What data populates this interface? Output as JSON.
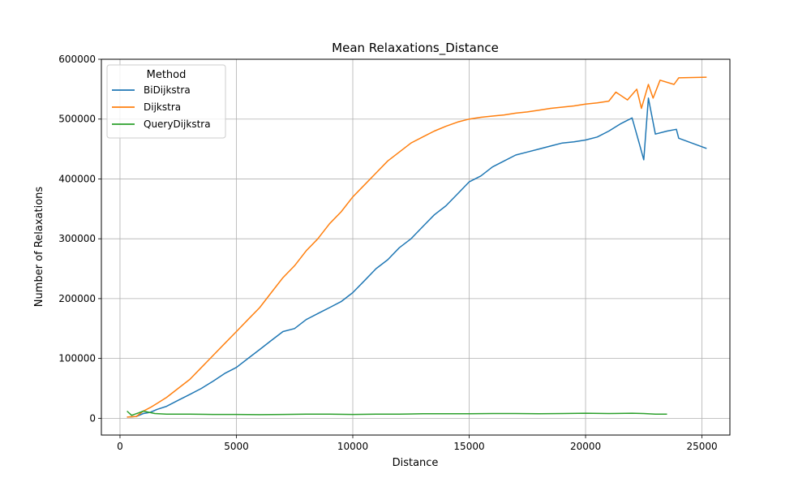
{
  "chart_data": {
    "type": "line",
    "title": "Mean Relaxations_Distance",
    "xlabel": "Distance",
    "ylabel": "Number of Relaxations",
    "xlim": [
      -800,
      26200
    ],
    "ylim": [
      -28000,
      600000
    ],
    "xticks": [
      0,
      5000,
      10000,
      15000,
      20000,
      25000
    ],
    "xtick_labels": [
      "0",
      "5000",
      "10000",
      "15000",
      "20000",
      "25000"
    ],
    "yticks": [
      0,
      100000,
      200000,
      300000,
      400000,
      500000,
      600000
    ],
    "ytick_labels": [
      "0",
      "100000",
      "200000",
      "300000",
      "400000",
      "500000",
      "600000"
    ],
    "grid": true,
    "legend": {
      "title": "Method",
      "position": "top-left"
    },
    "series": [
      {
        "name": "BiDijkstra",
        "color": "#1f77b4",
        "points": [
          [
            300,
            2000
          ],
          [
            700,
            3000
          ],
          [
            1000,
            8000
          ],
          [
            1300,
            10000
          ],
          [
            1600,
            15000
          ],
          [
            2000,
            20000
          ],
          [
            2500,
            30000
          ],
          [
            3000,
            40000
          ],
          [
            3500,
            50000
          ],
          [
            4000,
            62000
          ],
          [
            4500,
            75000
          ],
          [
            5000,
            85000
          ],
          [
            5500,
            100000
          ],
          [
            6000,
            115000
          ],
          [
            6500,
            130000
          ],
          [
            7000,
            145000
          ],
          [
            7500,
            150000
          ],
          [
            8000,
            165000
          ],
          [
            8500,
            175000
          ],
          [
            9000,
            185000
          ],
          [
            9500,
            195000
          ],
          [
            10000,
            210000
          ],
          [
            10500,
            230000
          ],
          [
            11000,
            250000
          ],
          [
            11500,
            265000
          ],
          [
            12000,
            285000
          ],
          [
            12500,
            300000
          ],
          [
            13000,
            320000
          ],
          [
            13500,
            340000
          ],
          [
            14000,
            355000
          ],
          [
            14500,
            375000
          ],
          [
            15000,
            395000
          ],
          [
            15500,
            405000
          ],
          [
            16000,
            420000
          ],
          [
            16500,
            430000
          ],
          [
            17000,
            440000
          ],
          [
            17500,
            445000
          ],
          [
            18000,
            450000
          ],
          [
            18500,
            455000
          ],
          [
            19000,
            460000
          ],
          [
            19500,
            462000
          ],
          [
            20000,
            465000
          ],
          [
            20500,
            470000
          ],
          [
            21000,
            480000
          ],
          [
            21500,
            492000
          ],
          [
            22000,
            502000
          ],
          [
            22300,
            460000
          ],
          [
            22500,
            432000
          ],
          [
            22700,
            535000
          ],
          [
            23000,
            475000
          ],
          [
            23500,
            480000
          ],
          [
            23900,
            483000
          ],
          [
            24000,
            468000
          ],
          [
            25200,
            451000
          ]
        ]
      },
      {
        "name": "Dijkstra",
        "color": "#ff7f0e",
        "points": [
          [
            300,
            2000
          ],
          [
            700,
            3000
          ],
          [
            1000,
            12000
          ],
          [
            1300,
            18000
          ],
          [
            1600,
            25000
          ],
          [
            2000,
            35000
          ],
          [
            2500,
            50000
          ],
          [
            3000,
            65000
          ],
          [
            3500,
            85000
          ],
          [
            4000,
            105000
          ],
          [
            4500,
            125000
          ],
          [
            5000,
            145000
          ],
          [
            5500,
            165000
          ],
          [
            6000,
            185000
          ],
          [
            6500,
            210000
          ],
          [
            7000,
            235000
          ],
          [
            7500,
            255000
          ],
          [
            8000,
            280000
          ],
          [
            8500,
            300000
          ],
          [
            9000,
            325000
          ],
          [
            9500,
            345000
          ],
          [
            10000,
            370000
          ],
          [
            10500,
            390000
          ],
          [
            11000,
            410000
          ],
          [
            11500,
            430000
          ],
          [
            12000,
            445000
          ],
          [
            12500,
            460000
          ],
          [
            13000,
            470000
          ],
          [
            13500,
            480000
          ],
          [
            14000,
            488000
          ],
          [
            14500,
            495000
          ],
          [
            15000,
            500000
          ],
          [
            15500,
            503000
          ],
          [
            16000,
            505000
          ],
          [
            16500,
            507000
          ],
          [
            17000,
            510000
          ],
          [
            17500,
            512000
          ],
          [
            18000,
            515000
          ],
          [
            18500,
            518000
          ],
          [
            19000,
            520000
          ],
          [
            19500,
            522000
          ],
          [
            20000,
            525000
          ],
          [
            20500,
            527000
          ],
          [
            21000,
            530000
          ],
          [
            21300,
            545000
          ],
          [
            21800,
            532000
          ],
          [
            22200,
            550000
          ],
          [
            22400,
            518000
          ],
          [
            22700,
            558000
          ],
          [
            22900,
            535000
          ],
          [
            23200,
            565000
          ],
          [
            23800,
            558000
          ],
          [
            24000,
            569000
          ],
          [
            25200,
            570000
          ]
        ]
      },
      {
        "name": "QueryDijkstra",
        "color": "#2ca02c",
        "points": [
          [
            300,
            12000
          ],
          [
            500,
            5000
          ],
          [
            800,
            9000
          ],
          [
            1000,
            12000
          ],
          [
            1500,
            8000
          ],
          [
            2000,
            7000
          ],
          [
            3000,
            7000
          ],
          [
            4000,
            6500
          ],
          [
            5000,
            6500
          ],
          [
            6000,
            6000
          ],
          [
            7000,
            6500
          ],
          [
            8000,
            7000
          ],
          [
            9000,
            7000
          ],
          [
            10000,
            6500
          ],
          [
            11000,
            7000
          ],
          [
            12000,
            7000
          ],
          [
            13000,
            7500
          ],
          [
            14000,
            7500
          ],
          [
            15000,
            7500
          ],
          [
            16000,
            8000
          ],
          [
            17000,
            8000
          ],
          [
            18000,
            7500
          ],
          [
            19000,
            8000
          ],
          [
            20000,
            8500
          ],
          [
            21000,
            8000
          ],
          [
            22000,
            8500
          ],
          [
            22500,
            8000
          ],
          [
            23000,
            7000
          ],
          [
            23500,
            7000
          ]
        ]
      }
    ]
  }
}
